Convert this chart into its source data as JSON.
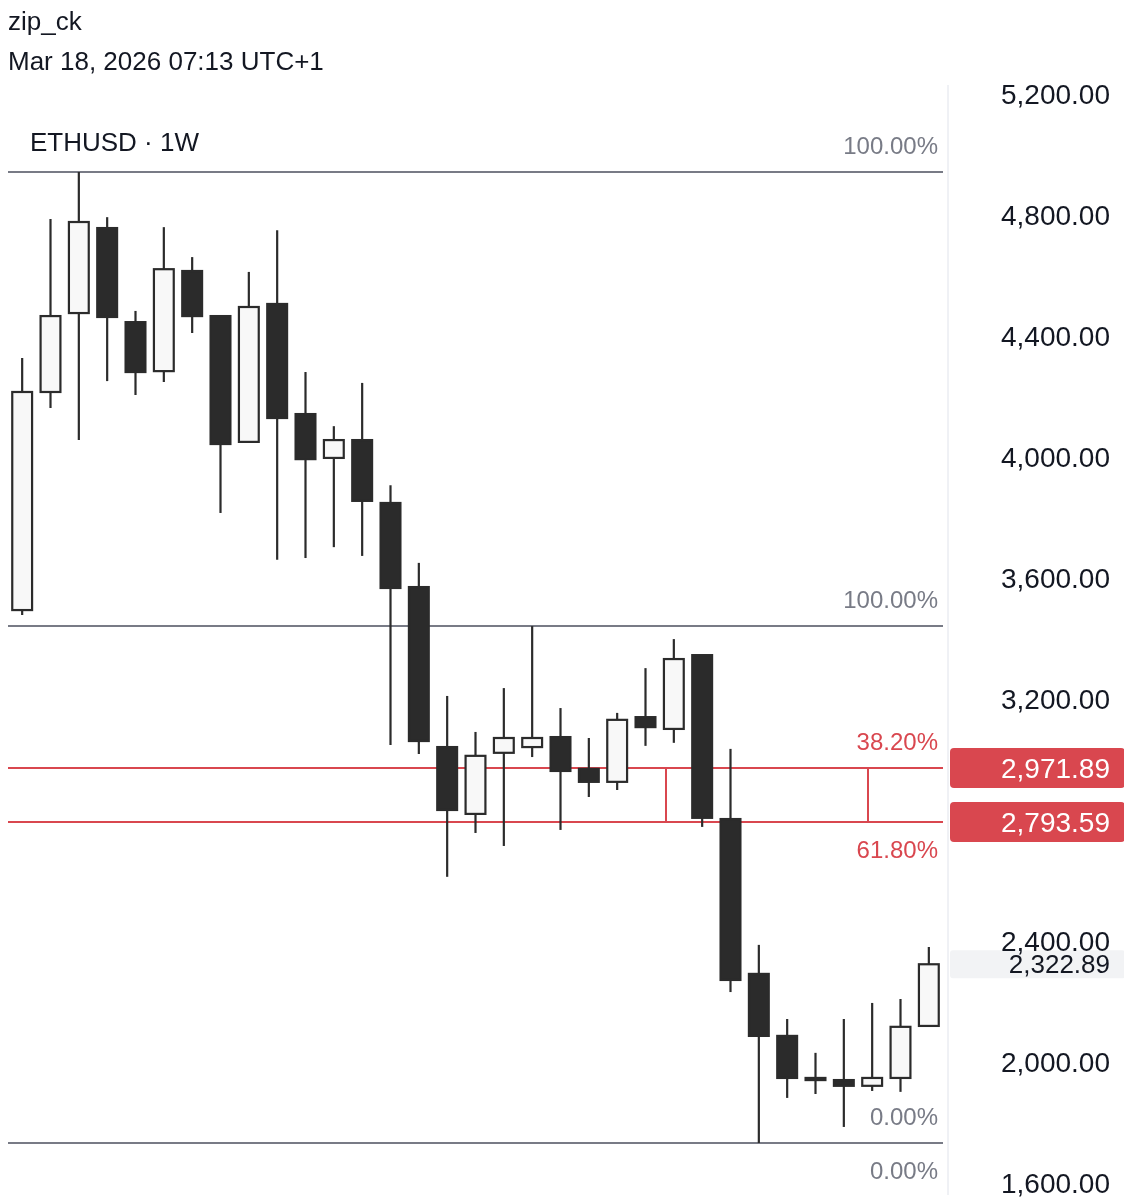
{
  "chart_data": {
    "type": "candlestick",
    "title": "ETHUSD · 1W",
    "annotations": [
      "zip_ck",
      "Mar 18, 2026 07:13 UTC+1",
      "100.00%",
      "100.00%",
      "38.20%",
      "61.80%",
      "0.00%",
      "0.00%",
      "2,971.89",
      "2,793.59",
      "2,322.89"
    ],
    "categories": [
      null,
      null,
      null,
      null,
      null,
      null,
      null,
      null,
      null,
      null,
      null,
      null,
      null,
      null,
      null,
      null,
      null,
      null,
      null,
      null,
      null,
      null,
      null,
      null,
      null,
      null,
      null,
      null,
      null,
      null,
      null,
      null,
      null
    ],
    "color": "#2b2b2b",
    "ohlc": [
      [
        3494,
        4327,
        3478,
        4215
      ],
      [
        4215,
        4787,
        4162,
        4466
      ],
      [
        4476,
        4942,
        4056,
        4777
      ],
      [
        4757,
        4793,
        4251,
        4463
      ],
      [
        4446,
        4483,
        4205,
        4281
      ],
      [
        4284,
        4760,
        4248,
        4621
      ],
      [
        4615,
        4661,
        4410,
        4466
      ],
      [
        4466,
        4466,
        3815,
        4043
      ],
      [
        4050,
        4612,
        4050,
        4496
      ],
      [
        4506,
        4750,
        3660,
        4129
      ],
      [
        4142,
        4281,
        3666,
        3993
      ],
      [
        3997,
        4102,
        3702,
        4056
      ],
      [
        4056,
        4245,
        3673,
        3855
      ],
      [
        3848,
        3907,
        3048,
        3567
      ],
      [
        3570,
        3650,
        3018,
        3061
      ],
      [
        3041,
        3210,
        2612,
        2833
      ],
      [
        2820,
        3091,
        2757,
        3012
      ],
      [
        3022,
        3236,
        2714,
        3071
      ],
      [
        3041,
        3441,
        3008,
        3071
      ],
      [
        3074,
        3170,
        2767,
        2962
      ],
      [
        2969,
        3071,
        2876,
        2926
      ],
      [
        2926,
        3154,
        2899,
        3131
      ],
      [
        3140,
        3302,
        3045,
        3107
      ],
      [
        3101,
        3398,
        3055,
        3332
      ],
      [
        3345,
        3345,
        2777,
        2807
      ],
      [
        2803,
        3035,
        2231,
        2271
      ],
      [
        2291,
        2387,
        1732,
        2086
      ],
      [
        2086,
        2142,
        1881,
        1947
      ],
      [
        1947,
        2030,
        1894,
        1940
      ],
      [
        1940,
        2142,
        1785,
        1921
      ],
      [
        1921,
        2195,
        1904,
        1947
      ],
      [
        1947,
        2208,
        1901,
        2116
      ],
      [
        2119,
        2380,
        2116,
        2322.89
      ]
    ],
    "ylim": [
      1560,
      5230
    ],
    "yticks": [
      {
        "value": 1600,
        "label": "1,600.00"
      },
      {
        "value": 2000,
        "label": "2,000.00"
      },
      {
        "value": 2400,
        "label": "2,400.00"
      },
      {
        "value": 2800,
        "label": null
      },
      {
        "value": 3200,
        "label": "3,200.00"
      },
      {
        "value": 3600,
        "label": "3,600.00"
      },
      {
        "value": 4000,
        "label": "4,000.00"
      },
      {
        "value": 4400,
        "label": "4,400.00"
      },
      {
        "value": 4800,
        "label": "4,800.00"
      },
      {
        "value": 5200,
        "label": "5,200.00"
      }
    ],
    "ref_lines": [
      {
        "axis": "y",
        "value": 4942,
        "color": "#787b86"
      },
      {
        "axis": "y",
        "value": 3441,
        "color": "#787b86"
      },
      {
        "axis": "y",
        "value": 2971.89,
        "color": "#d9474f"
      },
      {
        "axis": "y",
        "value": 2793.59,
        "color": "#d9474f"
      },
      {
        "axis": "y",
        "value": 1732,
        "color": "#787b86"
      }
    ]
  }
}
